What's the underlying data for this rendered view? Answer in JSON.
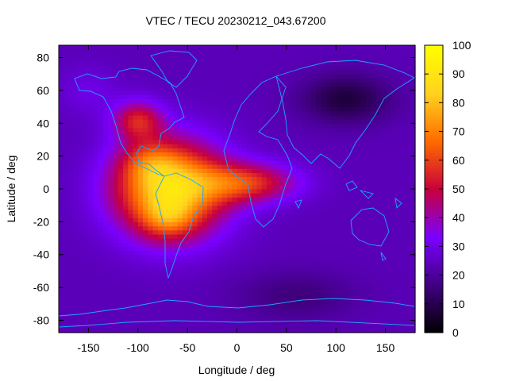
{
  "chart_data": {
    "type": "heatmap",
    "title": "VTEC / TECU 20230212_043.67200",
    "xlabel": "Longitude / deg",
    "ylabel": "Latitude / deg",
    "xlim": [
      -180,
      180
    ],
    "ylim": [
      -87.5,
      87.5
    ],
    "x_ticks": [
      -150,
      -100,
      -50,
      0,
      50,
      100,
      150
    ],
    "y_ticks": [
      -80,
      -60,
      -40,
      -20,
      0,
      20,
      40,
      60,
      80
    ],
    "colorbar": {
      "range": [
        0,
        100
      ],
      "ticks": [
        0,
        10,
        20,
        30,
        40,
        50,
        60,
        70,
        80,
        90,
        100
      ],
      "palette": [
        "#000000",
        "#400080",
        "#7a00ff",
        "#c8003c",
        "#ff6a00",
        "#ffd21e",
        "#ffff00"
      ]
    },
    "features": [
      {
        "name": "equatorial anomaly peak",
        "lon": -60,
        "lat": 5,
        "value": 95
      },
      {
        "name": "crest north",
        "lon": -85,
        "lat": 15,
        "value": 86
      },
      {
        "name": "crest south",
        "lon": -70,
        "lat": -18,
        "value": 88
      },
      {
        "name": "north american lobe",
        "lon": -90,
        "lat": 40,
        "value": 62
      },
      {
        "name": "atlantic tail",
        "lon": 30,
        "lat": 5,
        "value": 55
      },
      {
        "name": "asian minimum",
        "lon": 110,
        "lat": 55,
        "value": 5
      },
      {
        "name": "background",
        "lon": 120,
        "lat": -30,
        "value": 25
      }
    ]
  }
}
